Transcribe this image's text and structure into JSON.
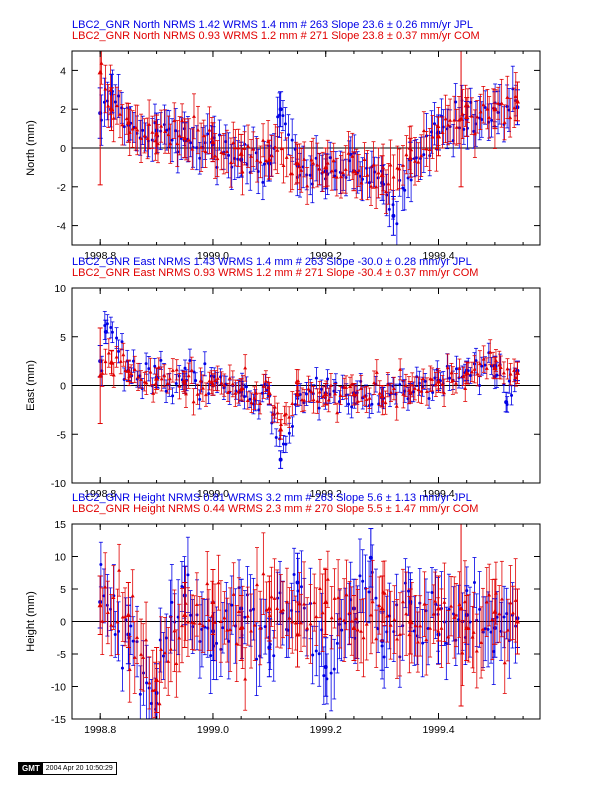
{
  "colors": {
    "jpl": "#0000e6",
    "com": "#e00000",
    "axis": "#000000"
  },
  "stamp": {
    "logo": "GMT",
    "timestamp": "2004 Apr 20 10:50:29"
  },
  "chart_data": [
    {
      "type": "scatter",
      "component": "north",
      "title_lines": [
        "LBC2_GNR North NRMS 1.42 WRMS  1.4 mm # 263 Slope   23.6 ±  0.26 mm/yr JPL",
        "LBC2_GNR North NRMS 0.93 WRMS  1.2 mm # 271 Slope   23.8 ±  0.37 mm/yr COM"
      ],
      "ylabel": "North (mm)",
      "xlim": [
        1998.75,
        1999.58
      ],
      "ylim": [
        -5,
        5
      ],
      "xticks": [
        "1998.8",
        "1999.0",
        "1999.2",
        "1999.4"
      ],
      "yticks": [
        "-4",
        "-2",
        "0",
        "2",
        "4"
      ],
      "series": [
        {
          "name": "JPL",
          "color": "#0000e6",
          "count": 263,
          "slope": 23.6,
          "slope_sigma": 0.26,
          "wrms": 1.4,
          "nrms": 1.42,
          "points": [
            [
              1998.8,
              1.8,
              1.3
            ],
            [
              1998.82,
              2.8,
              1.0
            ],
            [
              1998.85,
              1.2,
              0.9
            ],
            [
              1998.9,
              0.9,
              0.9
            ],
            [
              1998.95,
              0.4,
              0.9
            ],
            [
              1999.0,
              0.2,
              0.9
            ],
            [
              1999.05,
              -0.6,
              0.9
            ],
            [
              1999.1,
              -0.8,
              0.9
            ],
            [
              1999.12,
              2.0,
              0.9
            ],
            [
              1999.15,
              -0.9,
              0.9
            ],
            [
              1999.2,
              -1.2,
              0.9
            ],
            [
              1999.25,
              -1.2,
              0.9
            ],
            [
              1999.3,
              -1.8,
              0.9
            ],
            [
              1999.32,
              -3.5,
              1.0
            ],
            [
              1999.35,
              -0.6,
              0.9
            ],
            [
              1999.4,
              0.8,
              0.9
            ],
            [
              1999.45,
              1.5,
              0.9
            ],
            [
              1999.5,
              2.0,
              0.9
            ],
            [
              1999.54,
              2.1,
              0.9
            ]
          ]
        },
        {
          "name": "COM",
          "color": "#e00000",
          "count": 271,
          "slope": 23.8,
          "slope_sigma": 0.37,
          "wrms": 1.2,
          "nrms": 0.93,
          "points": [
            [
              1998.8,
              3.9,
              5.8
            ],
            [
              1998.82,
              2.0,
              1.1
            ],
            [
              1998.85,
              1.3,
              1.0
            ],
            [
              1998.9,
              0.7,
              1.0
            ],
            [
              1998.95,
              0.5,
              1.0
            ],
            [
              1999.0,
              0.3,
              1.0
            ],
            [
              1999.05,
              -0.3,
              1.0
            ],
            [
              1999.1,
              -0.6,
              1.0
            ],
            [
              1999.15,
              -0.8,
              1.0
            ],
            [
              1999.2,
              -1.0,
              1.0
            ],
            [
              1999.25,
              -1.2,
              1.0
            ],
            [
              1999.3,
              -1.4,
              1.0
            ],
            [
              1999.35,
              -0.5,
              1.0
            ],
            [
              1999.4,
              0.6,
              1.0
            ],
            [
              1999.44,
              1.5,
              3.5
            ],
            [
              1999.45,
              1.6,
              1.0
            ],
            [
              1999.5,
              2.0,
              1.0
            ],
            [
              1999.54,
              2.4,
              1.0
            ]
          ]
        }
      ]
    },
    {
      "type": "scatter",
      "component": "east",
      "title_lines": [
        "LBC2_GNR East NRMS 1.43 WRMS  1.4 mm # 263 Slope  -30.0 ±  0.28 mm/yr JPL",
        "LBC2_GNR East NRMS 0.93 WRMS  1.2 mm # 271 Slope  -30.4 ±  0.37 mm/yr COM"
      ],
      "ylabel": "East (mm)",
      "xlim": [
        1998.75,
        1999.58
      ],
      "ylim": [
        -10,
        10
      ],
      "xticks": [
        "1998.8",
        "1999.0",
        "1999.2",
        "1999.4"
      ],
      "yticks": [
        "-10",
        "-5",
        "0",
        "5",
        "10"
      ],
      "series": [
        {
          "name": "JPL",
          "color": "#0000e6",
          "count": 263,
          "slope": -30.0,
          "slope_sigma": 0.28,
          "wrms": 1.4,
          "nrms": 1.43,
          "points": [
            [
              1998.8,
              2.5,
              1.6
            ],
            [
              1998.81,
              5.5,
              1.2
            ],
            [
              1998.85,
              1.5,
              1.0
            ],
            [
              1998.9,
              0.8,
              1.0
            ],
            [
              1998.95,
              0.2,
              1.0
            ],
            [
              1999.0,
              0.0,
              1.0
            ],
            [
              1999.05,
              -0.6,
              1.0
            ],
            [
              1999.1,
              -1.0,
              1.0
            ],
            [
              1999.12,
              -7.6,
              0.9
            ],
            [
              1999.15,
              -1.0,
              1.0
            ],
            [
              1999.2,
              -0.8,
              1.0
            ],
            [
              1999.25,
              -0.8,
              1.0
            ],
            [
              1999.3,
              -1.2,
              1.0
            ],
            [
              1999.35,
              -0.8,
              1.0
            ],
            [
              1999.4,
              0.5,
              1.0
            ],
            [
              1999.45,
              1.5,
              1.0
            ],
            [
              1999.5,
              2.0,
              1.0
            ],
            [
              1999.52,
              -1.7,
              1.0
            ],
            [
              1999.54,
              1.5,
              1.0
            ]
          ]
        },
        {
          "name": "COM",
          "color": "#e00000",
          "count": 271,
          "slope": -30.4,
          "slope_sigma": 0.37,
          "wrms": 1.2,
          "nrms": 0.93,
          "points": [
            [
              1998.8,
              1.0,
              4.9
            ],
            [
              1998.82,
              2.4,
              1.2
            ],
            [
              1998.85,
              1.5,
              1.1
            ],
            [
              1998.9,
              0.7,
              1.1
            ],
            [
              1998.95,
              0.3,
              1.1
            ],
            [
              1999.0,
              0.1,
              1.1
            ],
            [
              1999.05,
              -0.4,
              1.1
            ],
            [
              1999.1,
              -0.8,
              1.1
            ],
            [
              1999.12,
              -4.5,
              1.0
            ],
            [
              1999.15,
              -0.9,
              1.1
            ],
            [
              1999.2,
              -0.9,
              1.1
            ],
            [
              1999.25,
              -0.9,
              1.1
            ],
            [
              1999.3,
              -1.1,
              1.1
            ],
            [
              1999.35,
              -0.7,
              1.1
            ],
            [
              1999.4,
              0.4,
              1.1
            ],
            [
              1999.45,
              1.3,
              1.1
            ],
            [
              1999.5,
              1.8,
              1.1
            ],
            [
              1999.54,
              1.3,
              1.1
            ]
          ]
        }
      ]
    },
    {
      "type": "scatter",
      "component": "height",
      "title_lines": [
        "LBC2_GNR Height NRMS 0.81 WRMS  3.2 mm # 263 Slope    5.6 ±  1.13 mm/yr JPL",
        "LBC2_GNR Height NRMS 0.44 WRMS  2.3 mm # 270 Slope    5.5 ±  1.47 mm/yr COM"
      ],
      "ylabel": "Height (mm)",
      "xlim": [
        1998.75,
        1999.58
      ],
      "ylim": [
        -15,
        15
      ],
      "xticks": [
        "1998.8",
        "1999.0",
        "1999.2",
        "1999.4"
      ],
      "yticks": [
        "-15",
        "-10",
        "-5",
        "0",
        "5",
        "10",
        "15"
      ],
      "series": [
        {
          "name": "JPL",
          "color": "#0000e6",
          "count": 263,
          "slope": 5.6,
          "slope_sigma": 1.13,
          "wrms": 3.2,
          "nrms": 0.81,
          "points": [
            [
              1998.8,
              3.0,
              4.0
            ],
            [
              1998.85,
              -2.0,
              4.5
            ],
            [
              1998.9,
              -11.0,
              4.5
            ],
            [
              1998.95,
              4.0,
              4.5
            ],
            [
              1999.0,
              -1.5,
              4.5
            ],
            [
              1999.05,
              2.0,
              4.5
            ],
            [
              1999.1,
              -4.0,
              4.5
            ],
            [
              1999.15,
              6.0,
              4.5
            ],
            [
              1999.2,
              -7.0,
              4.5
            ],
            [
              1999.25,
              2.0,
              4.5
            ],
            [
              1999.28,
              9.8,
              4.5
            ],
            [
              1999.3,
              -3.0,
              4.5
            ],
            [
              1999.35,
              3.0,
              4.5
            ],
            [
              1999.4,
              -2.0,
              4.5
            ],
            [
              1999.45,
              1.0,
              4.5
            ],
            [
              1999.5,
              -1.0,
              4.5
            ],
            [
              1999.54,
              0.5,
              4.5
            ]
          ]
        },
        {
          "name": "COM",
          "color": "#e00000",
          "count": 270,
          "slope": 5.5,
          "slope_sigma": 1.47,
          "wrms": 2.3,
          "nrms": 0.44,
          "points": [
            [
              1998.8,
              2.5,
              4.5
            ],
            [
              1998.85,
              1.0,
              5.0
            ],
            [
              1998.9,
              -9.0,
              5.0
            ],
            [
              1998.95,
              1.0,
              5.0
            ],
            [
              1999.0,
              3.0,
              5.0
            ],
            [
              1999.05,
              -1.0,
              5.0
            ],
            [
              1999.1,
              2.0,
              5.0
            ],
            [
              1999.15,
              -2.0,
              5.0
            ],
            [
              1999.2,
              3.0,
              5.0
            ],
            [
              1999.25,
              -1.0,
              5.0
            ],
            [
              1999.3,
              2.0,
              5.0
            ],
            [
              1999.35,
              0.0,
              5.0
            ],
            [
              1999.4,
              2.0,
              5.0
            ],
            [
              1999.44,
              2.0,
              15.0
            ],
            [
              1999.45,
              -1.0,
              5.0
            ],
            [
              1999.5,
              1.5,
              5.0
            ],
            [
              1999.54,
              0.0,
              5.0
            ]
          ]
        }
      ]
    }
  ]
}
